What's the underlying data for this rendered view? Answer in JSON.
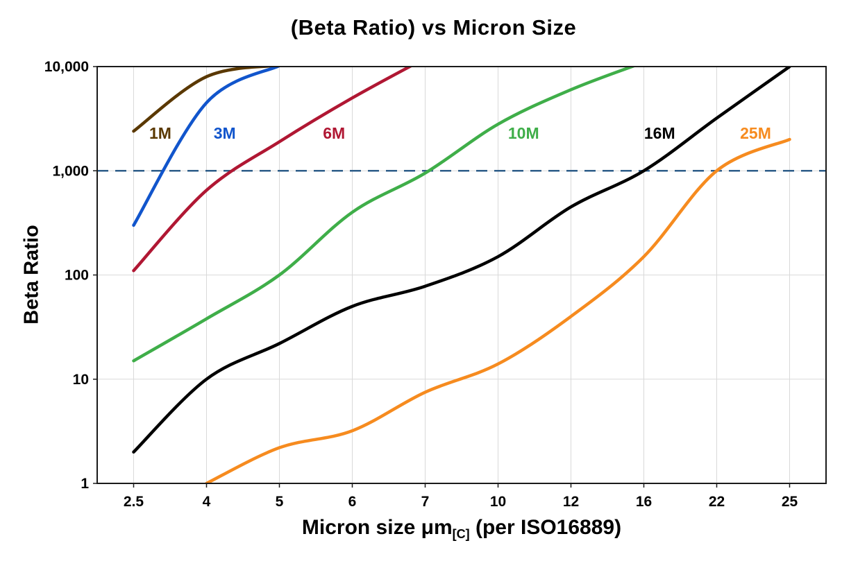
{
  "chart": {
    "title": "(Beta Ratio) vs Micron Size",
    "y_axis_title": "Beta Ratio",
    "x_axis_title_main": "Micron size μm",
    "x_axis_title_sub": "[C]",
    "x_axis_title_rest": "(per ISO16889)"
  },
  "chart_data": {
    "type": "line",
    "title": "(Beta Ratio) vs Micron Size",
    "xlabel": "Micron size μm[C] (per ISO16889)",
    "ylabel": "Beta Ratio",
    "x_categories": [
      2.5,
      4,
      5,
      6,
      7,
      10,
      12,
      16,
      22,
      25
    ],
    "x_tick_labels": [
      "2.5",
      "4",
      "5",
      "6",
      "7",
      "10",
      "12",
      "16",
      "22",
      "25"
    ],
    "y_scale": "log",
    "y_ticks": [
      1,
      10,
      100,
      1000,
      10000
    ],
    "y_tick_labels": [
      "1",
      "10",
      "100",
      "1,000",
      "10,000"
    ],
    "ylim": [
      1,
      10000
    ],
    "grid": true,
    "grid_color": "#d9d9d9",
    "reference_line": {
      "value": 1000,
      "style": "dashed",
      "color": "#2d5c88"
    },
    "series": [
      {
        "name": "1M",
        "color": "#5a3800",
        "label_x": 3.05,
        "label_y": 2300,
        "points": [
          [
            2.5,
            2400
          ],
          [
            4,
            8000
          ],
          [
            5,
            10300
          ]
        ]
      },
      {
        "name": "3M",
        "color": "#1155cc",
        "label_x": 4.25,
        "label_y": 2300,
        "points": [
          [
            2.5,
            300
          ],
          [
            4,
            4500
          ],
          [
            5,
            10200
          ]
        ]
      },
      {
        "name": "6M",
        "color": "#b01733",
        "label_x": 5.75,
        "label_y": 2300,
        "points": [
          [
            2.5,
            110
          ],
          [
            4,
            650
          ],
          [
            5,
            1900
          ],
          [
            6,
            5000
          ],
          [
            7,
            12000
          ]
        ]
      },
      {
        "name": "10M",
        "color": "#3fae49",
        "label_x": 10.7,
        "label_y": 2300,
        "points": [
          [
            2.5,
            15
          ],
          [
            4,
            38
          ],
          [
            5,
            100
          ],
          [
            6,
            400
          ],
          [
            7,
            950
          ],
          [
            10,
            2800
          ],
          [
            12,
            6000
          ],
          [
            16,
            11000
          ]
        ]
      },
      {
        "name": "16M",
        "color": "#000000",
        "label_x": 17.3,
        "label_y": 2300,
        "points": [
          [
            2.5,
            2
          ],
          [
            4,
            10
          ],
          [
            5,
            22
          ],
          [
            6,
            50
          ],
          [
            7,
            78
          ],
          [
            10,
            150
          ],
          [
            12,
            450
          ],
          [
            16,
            1000
          ],
          [
            22,
            3200
          ],
          [
            25,
            10000
          ]
        ]
      },
      {
        "name": "25M",
        "color": "#f68b1f",
        "label_x": 23.6,
        "label_y": 2300,
        "points": [
          [
            4,
            1
          ],
          [
            5,
            2.2
          ],
          [
            6,
            3.2
          ],
          [
            7,
            7.5
          ],
          [
            10,
            14
          ],
          [
            12,
            40
          ],
          [
            16,
            150
          ],
          [
            22,
            1000
          ],
          [
            25,
            2000
          ]
        ]
      }
    ]
  }
}
